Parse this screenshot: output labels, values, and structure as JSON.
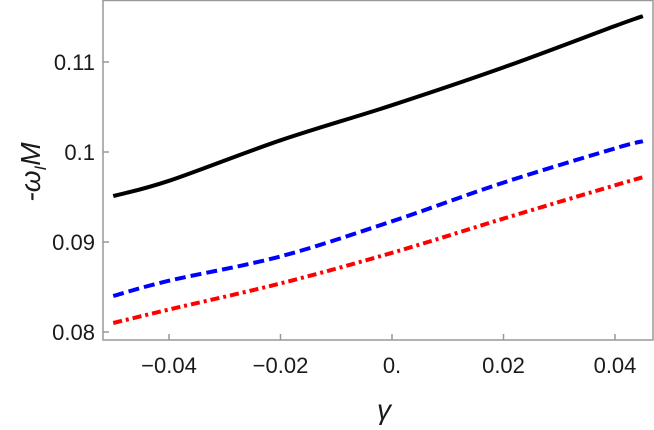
{
  "chart_data": {
    "type": "line",
    "title": "",
    "xlabel": "γ",
    "ylabel": "-ω_I M",
    "xlim": [
      -0.05,
      0.045
    ],
    "ylim": [
      0.079,
      0.1166
    ],
    "grid": false,
    "legend": null,
    "x_ticks": [
      -0.04,
      -0.02,
      0.0,
      0.02,
      0.04
    ],
    "x_tick_labels": [
      "−0.04",
      "−0.02",
      "0.",
      "0.02",
      "0.04"
    ],
    "y_ticks": [
      0.08,
      0.09,
      0.1,
      0.11
    ],
    "y_tick_labels": [
      "0.08",
      "0.09",
      "0.1",
      "0.11"
    ],
    "x": [
      -0.05,
      -0.04,
      -0.02,
      0.0,
      0.02,
      0.04,
      0.045
    ],
    "series": [
      {
        "name": "solid-black",
        "color": "#000000",
        "style": "solid",
        "values": [
          0.0951,
          0.0968,
          0.1013,
          0.1052,
          0.1094,
          0.114,
          0.1151
        ]
      },
      {
        "name": "dashed-blue",
        "color": "#0000ff",
        "style": "dashed",
        "values": [
          0.084,
          0.0857,
          0.0884,
          0.0923,
          0.0966,
          0.1004,
          0.1012
        ]
      },
      {
        "name": "dashdot-red",
        "color": "#ff0000",
        "style": "dashdot",
        "values": [
          0.081,
          0.0825,
          0.0854,
          0.0888,
          0.0926,
          0.0963,
          0.0972
        ]
      }
    ]
  },
  "labels": {
    "xlabel": "γ",
    "ylabel_main": "-ω",
    "ylabel_sub": "I",
    "ylabel_tail": "M"
  }
}
